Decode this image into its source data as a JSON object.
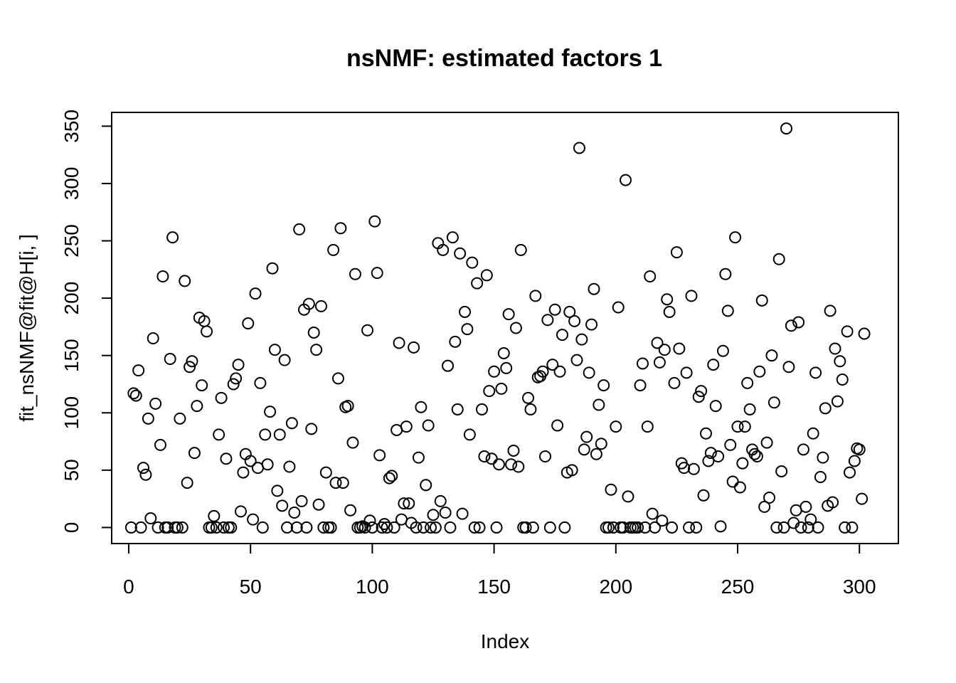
{
  "chart_data": {
    "type": "scatter",
    "title": "nsNMF: estimated factors 1",
    "xlabel": "Index",
    "ylabel": "fit_nsNMF@fit@H[i, ]",
    "xlim": [
      -7,
      316
    ],
    "ylim": [
      -14,
      362
    ],
    "xticks": [
      0,
      50,
      100,
      150,
      200,
      250,
      300
    ],
    "yticks": [
      0,
      50,
      100,
      150,
      200,
      250,
      300,
      350
    ],
    "grid": false,
    "y": [
      0,
      117,
      115,
      137,
      0,
      52,
      46,
      95,
      8,
      165,
      108,
      0,
      72,
      219,
      0,
      0,
      147,
      253,
      0,
      0,
      95,
      0,
      215,
      39,
      140,
      145,
      65,
      106,
      183,
      124,
      180,
      171,
      0,
      0,
      10,
      0,
      81,
      113,
      0,
      60,
      0,
      0,
      125,
      130,
      142,
      14,
      48,
      64,
      178,
      58,
      7,
      204,
      52,
      126,
      0,
      81,
      55,
      101,
      226,
      155,
      32,
      81,
      19,
      146,
      0,
      53,
      91,
      13,
      0,
      260,
      23,
      190,
      0,
      195,
      86,
      170,
      155,
      20,
      193,
      0,
      48,
      0,
      0,
      242,
      39,
      130,
      261,
      39,
      105,
      106,
      15,
      74,
      221,
      0,
      0,
      1,
      0,
      172,
      6,
      0,
      267,
      222,
      63,
      0,
      3,
      0,
      43,
      45,
      0,
      85,
      161,
      7,
      21,
      88,
      21,
      4,
      157,
      0,
      61,
      105,
      0,
      37,
      89,
      0,
      11,
      0,
      248,
      23,
      242,
      13,
      141,
      0,
      253,
      162,
      103,
      239,
      12,
      188,
      173,
      81,
      231,
      0,
      213,
      0,
      103,
      62,
      220,
      119,
      60,
      136,
      0,
      55,
      121,
      152,
      139,
      186,
      55,
      67,
      174,
      53,
      242,
      0,
      0,
      113,
      103,
      0,
      202,
      131,
      132,
      136,
      62,
      181,
      0,
      142,
      190,
      89,
      136,
      168,
      0,
      48,
      188,
      50,
      180,
      146,
      331,
      164,
      68,
      79,
      135,
      177,
      208,
      64,
      107,
      73,
      124,
      0,
      0,
      33,
      0,
      88,
      192,
      0,
      0,
      303,
      27,
      0,
      0,
      0,
      0,
      124,
      143,
      0,
      88,
      219,
      12,
      0,
      161,
      144,
      6,
      155,
      199,
      188,
      0,
      126,
      240,
      156,
      56,
      52,
      135,
      0,
      202,
      51,
      0,
      114,
      119,
      28,
      82,
      58,
      65,
      142,
      106,
      62,
      1,
      154,
      221,
      189,
      72,
      40,
      253,
      88,
      35,
      56,
      88,
      126,
      103,
      68,
      64,
      62,
      136,
      198,
      18,
      74,
      26,
      150,
      109,
      0,
      234,
      49,
      0,
      348,
      140,
      176,
      4,
      15,
      179,
      0,
      68,
      18,
      0,
      7,
      82,
      135,
      0,
      44,
      61,
      104,
      19,
      189,
      22,
      156,
      110,
      145,
      129,
      0,
      171,
      48,
      0,
      58,
      69,
      68,
      25,
      169
    ],
    "point_labels": []
  }
}
